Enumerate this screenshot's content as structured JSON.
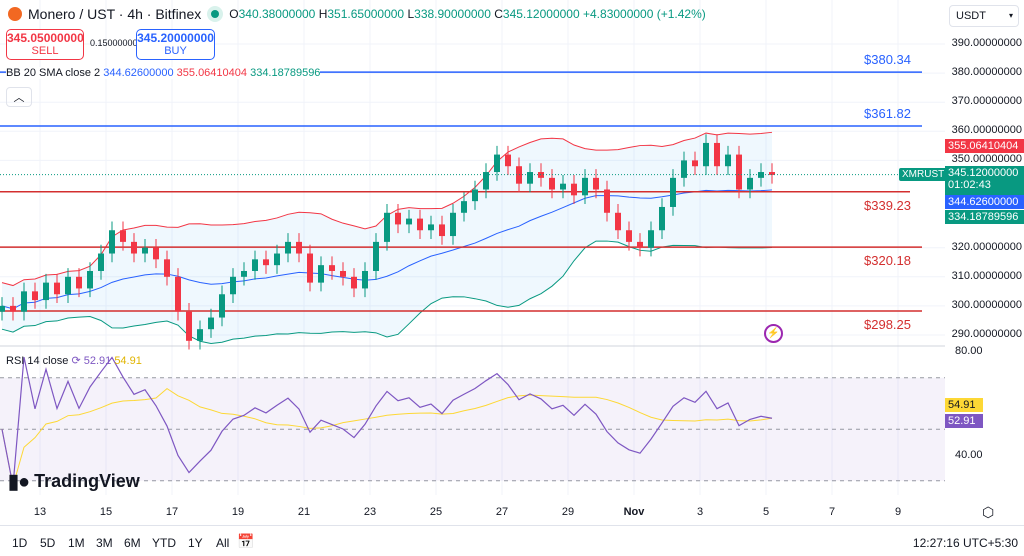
{
  "header": {
    "symbol": "Monero / UST · 4h · Bitfinex",
    "o_label": "O",
    "o": "340.38000000",
    "h_label": "H",
    "h": "351.65000000",
    "l_label": "L",
    "l": "338.90000000",
    "c_label": "C",
    "c": "345.12000000",
    "change": "+4.83000000 (+1.42%)"
  },
  "trade": {
    "sell_price": "345.05000000",
    "sell_label": "SELL",
    "spread": "0.15000000",
    "buy_price": "345.20000000",
    "buy_label": "BUY"
  },
  "bb": {
    "label": "BB 20 SMA close 2",
    "basis": "344.62600000",
    "upper": "355.06410404",
    "lower": "334.18789596"
  },
  "currency": "USDT",
  "price_axis": [
    "390.00000000",
    "380.00000000",
    "370.00000000",
    "360.00000000",
    "350.00000000",
    "320.00000000",
    "310.00000000",
    "300.00000000",
    "290.00000000"
  ],
  "price_axis_values": [
    390,
    380,
    370,
    360,
    350,
    320,
    310,
    300,
    290
  ],
  "tags": {
    "upper": "355.06410404",
    "symbol": "XMRUST",
    "last": "345.12000000",
    "countdown": "01:02:43",
    "basis": "344.62600000",
    "lower": "334.18789596"
  },
  "levels": [
    {
      "label": "$380.34",
      "value": 380.34,
      "color": "#2962ff"
    },
    {
      "label": "$361.82",
      "value": 361.82,
      "color": "#2962ff"
    },
    {
      "label": "$339.23",
      "value": 339.23,
      "color": "#d32f2f"
    },
    {
      "label": "$320.18",
      "value": 320.18,
      "color": "#d32f2f"
    },
    {
      "label": "$298.25",
      "value": 298.25,
      "color": "#d32f2f"
    }
  ],
  "rsi": {
    "label": "RSI 14 close",
    "rsi": "52.91",
    "ma": "54.91",
    "axis": [
      "80.00",
      "40.00"
    ]
  },
  "x_axis": [
    "13",
    "15",
    "17",
    "19",
    "21",
    "23",
    "25",
    "27",
    "29",
    "Nov",
    "3",
    "5",
    "7",
    "9"
  ],
  "closes": [
    300,
    298,
    305,
    302,
    308,
    304,
    310,
    306,
    312,
    318,
    326,
    322,
    318,
    320,
    316,
    310,
    298,
    288,
    292,
    296,
    304,
    310,
    312,
    316,
    314,
    318,
    322,
    318,
    308,
    314,
    312,
    310,
    306,
    312,
    322,
    332,
    328,
    330,
    326,
    328,
    324,
    332,
    336,
    340,
    346,
    352,
    348,
    342,
    346,
    344,
    340,
    342,
    338,
    344,
    340,
    332,
    326,
    322,
    320,
    326,
    334,
    344,
    350,
    348,
    356,
    348,
    352,
    340,
    344,
    346,
    345
  ],
  "timeframes": [
    "1D",
    "5D",
    "1M",
    "3M",
    "6M",
    "YTD",
    "1Y",
    "All"
  ],
  "clock": "12:27:16 UTC+5:30",
  "logo": "TradingView",
  "colors": {
    "up": "#089981",
    "down": "#f23645",
    "basis": "#2962ff",
    "upper": "#f23645",
    "lower": "#089981",
    "rsi": "#7e57c2",
    "rsi_ma": "#fdd835"
  }
}
